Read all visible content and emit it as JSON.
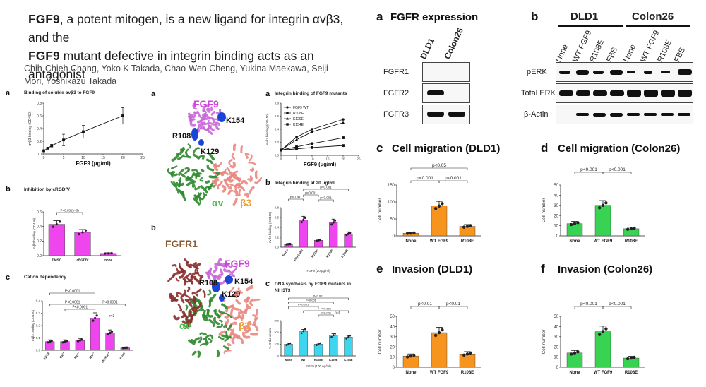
{
  "paper": {
    "title_part1": "FGF9",
    "title_rest1": ", a potent mitogen, is a new ligand for integrin αvβ3, and the",
    "title_part2": "FGF9",
    "title_rest2": " mutant defective in integrin binding acts as an antagonist",
    "authors": "Chih-Chieh Chang, Yoko K Takada, Chao-Wen Cheng, Yukina Maekawa, Seiji Mori, Yoshikazu Takada"
  },
  "colors": {
    "magenta": "#ee45ee",
    "cyan": "#3dd6ee",
    "orange": "#f7941d",
    "green": "#39d353",
    "black": "#111111"
  },
  "left_panels": {
    "a": {
      "label": "a",
      "title": "Binding of soluble αvβ3 to FGF9",
      "chart_data": {
        "type": "line",
        "x": [
          0,
          1,
          2,
          5,
          10,
          20
        ],
        "y": [
          0.05,
          0.09,
          0.13,
          0.22,
          0.35,
          0.6
        ],
        "err": [
          0.0,
          0.0,
          0.02,
          0.09,
          0.1,
          0.13
        ],
        "xlabel": "FGF9 (μg/ml)",
        "ylabel": "αvβ3 binding (OD450)",
        "xticks": [
          "0",
          "5",
          "10",
          "15",
          "20",
          "25"
        ],
        "yticks": [
          "0.0",
          "0.2",
          "0.4",
          "0.6",
          "0.8"
        ],
        "xlim": [
          0,
          25
        ],
        "ylim": [
          0,
          0.8
        ]
      }
    },
    "b": {
      "label": "b",
      "title": "Inhibition by cRGDfV",
      "annotation": "P<0.05 (n=3)",
      "chart_data": {
        "type": "bar",
        "categories": [
          "DMSO",
          "cRGDfV",
          "none"
        ],
        "values": [
          0.43,
          0.32,
          0.03
        ],
        "ylabel": "αvβ3 binding (OD450)",
        "yticks": [
          "0.0",
          "0.2",
          "0.4",
          "0.6"
        ],
        "ylim": [
          0,
          0.6
        ]
      }
    },
    "c": {
      "label": "c",
      "title": "Cation dependency",
      "annotations": [
        "P<0.0001",
        "P<0.0001",
        "P<0.0001",
        "P<0.0001",
        "n=3"
      ],
      "chart_data": {
        "type": "bar",
        "categories": [
          "EDTA",
          "Ca²⁺",
          "Mg²⁺",
          "Mn²⁺",
          "Mn/Ca²⁺",
          "none"
        ],
        "values": [
          0.07,
          0.07,
          0.08,
          0.26,
          0.14,
          0.02
        ],
        "ylabel": "αvβ3 binding (OD450)",
        "yticks": [
          "0.0",
          "0.1",
          "0.2",
          "0.3",
          "0.4"
        ],
        "ylim": [
          0,
          0.4
        ]
      }
    }
  },
  "structures": {
    "a": {
      "label": "a",
      "fgf9": "FGF9",
      "k154": "K154",
      "r108": "R108",
      "k129": "K129",
      "av": "αv",
      "b3": "β3"
    },
    "b": {
      "label": "b",
      "fgfr1": "FGFR1",
      "fgf9": "FGF9",
      "r108": "R108",
      "k154": "K154",
      "k129": "K129",
      "av": "αv",
      "b3": "β3"
    }
  },
  "mid_panels": {
    "a": {
      "label": "a",
      "title": "Integrin binding of FGF9 mutants",
      "chart_data": {
        "type": "line",
        "x": [
          0,
          5,
          10,
          20
        ],
        "series": [
          {
            "name": "FGF9 WT",
            "values": [
              0.08,
              0.28,
              0.4,
              0.55
            ]
          },
          {
            "name": "R108E",
            "values": [
              0.08,
              0.1,
              0.12,
              0.15
            ]
          },
          {
            "name": "K129E",
            "values": [
              0.08,
              0.24,
              0.36,
              0.5
            ]
          },
          {
            "name": "K154E",
            "values": [
              0.08,
              0.13,
              0.18,
              0.27
            ]
          }
        ],
        "xlabel": "FGF9 (μg/ml)",
        "ylabel": "αvβ3 binding (OD450)",
        "xticks": [
          "0",
          "5",
          "10",
          "15",
          "20",
          "25"
        ],
        "yticks": [
          "0.0",
          "0.2",
          "0.4",
          "0.6",
          "0.8"
        ],
        "xlim": [
          0,
          25
        ],
        "ylim": [
          0,
          0.8
        ]
      }
    },
    "b": {
      "label": "b",
      "title": "Integrin binding at 20 μg/ml",
      "xlabel": "FGF9 (20 μg/ml)",
      "annotations": [
        "p<0.001",
        "p<0.001",
        "p<0.001",
        "p<0.001"
      ],
      "chart_data": {
        "type": "bar",
        "categories": [
          "None",
          "FGF9 WT",
          "R108E",
          "K129E",
          "K154E"
        ],
        "values": [
          0.06,
          0.55,
          0.14,
          0.5,
          0.27
        ],
        "ylabel": "αvβ3 binding (OD450)",
        "yticks": [
          "0.0",
          "0.2",
          "0.4",
          "0.6",
          "0.8"
        ],
        "ylim": [
          0,
          0.8
        ]
      }
    },
    "c": {
      "label": "c",
      "title": "DNA synthesis by FGF9 mutants in NIH3T3",
      "xlabel": "FGF9 (100 ng/ml)",
      "annotations": [
        "P<0.001",
        "P<0.001",
        "P<0.001",
        "P<0.001",
        "P<0.001",
        "n=5"
      ],
      "chart_data": {
        "type": "bar",
        "categories": [
          "None",
          "WT",
          "R108E",
          "K129E",
          "K154E"
        ],
        "values": [
          100,
          210,
          100,
          175,
          160
        ],
        "ylabel": "% BrdU uptake",
        "yticks": [
          "0",
          "100",
          "200",
          "300"
        ],
        "ylim": [
          0,
          300
        ]
      }
    }
  },
  "right_top": {
    "a": {
      "label": "a",
      "title": "FGFR expression",
      "lanes": [
        "DLD1",
        "Colon26"
      ],
      "rows": [
        "FGFR1",
        "FGFR2",
        "FGFR3"
      ]
    },
    "b": {
      "label": "b",
      "groups": [
        "DLD1",
        "Colon26"
      ],
      "lanes": [
        "None",
        "WT FGF9",
        "R108E",
        "FBS",
        "None",
        "WT FGF9",
        "R108E",
        "FBS"
      ],
      "rows": [
        "pERK",
        "Total ERK",
        "β-Actin"
      ]
    }
  },
  "right_bottom": {
    "c": {
      "label": "c",
      "title": "Cell migration (DLD1)",
      "annotations": [
        "p<0.05",
        "p<0.001",
        "p<0.001"
      ],
      "chart_data": {
        "type": "bar",
        "categories": [
          "None",
          "WT FGF9",
          "R108E"
        ],
        "values": [
          8,
          88,
          28
        ],
        "ylabel": "Cell number",
        "yticks": [
          "0",
          "50",
          "100",
          "150"
        ],
        "ylim": [
          0,
          150
        ]
      }
    },
    "d": {
      "label": "d",
      "title": "Cell migration (Colon26)",
      "annotations": [
        "p<0.001",
        "p<0.001"
      ],
      "chart_data": {
        "type": "bar",
        "categories": [
          "None",
          "WT FGF9",
          "R108E"
        ],
        "values": [
          12,
          30,
          7
        ],
        "ylabel": "Cell number",
        "yticks": [
          "0",
          "10",
          "20",
          "30",
          "40",
          "50"
        ],
        "ylim": [
          0,
          50
        ]
      }
    },
    "e": {
      "label": "e",
      "title": "Invasion (DLD1)",
      "annotations": [
        "p<0.01",
        "p<0.01"
      ],
      "chart_data": {
        "type": "bar",
        "categories": [
          "None",
          "WT FGF9",
          "R108E"
        ],
        "values": [
          11,
          34,
          13
        ],
        "ylabel": "Cell number",
        "yticks": [
          "0",
          "10",
          "20",
          "30",
          "40",
          "50"
        ],
        "ylim": [
          0,
          50
        ]
      }
    },
    "f": {
      "label": "f",
      "title": "Invasion (Colon26)",
      "annotations": [
        "p<0.001",
        "p<0.001"
      ],
      "chart_data": {
        "type": "bar",
        "categories": [
          "None",
          "WT FGF9",
          "R108E"
        ],
        "values": [
          14,
          35,
          9
        ],
        "ylabel": "Cell number",
        "yticks": [
          "0",
          "10",
          "20",
          "30",
          "40",
          "50"
        ],
        "ylim": [
          0,
          50
        ]
      }
    }
  }
}
